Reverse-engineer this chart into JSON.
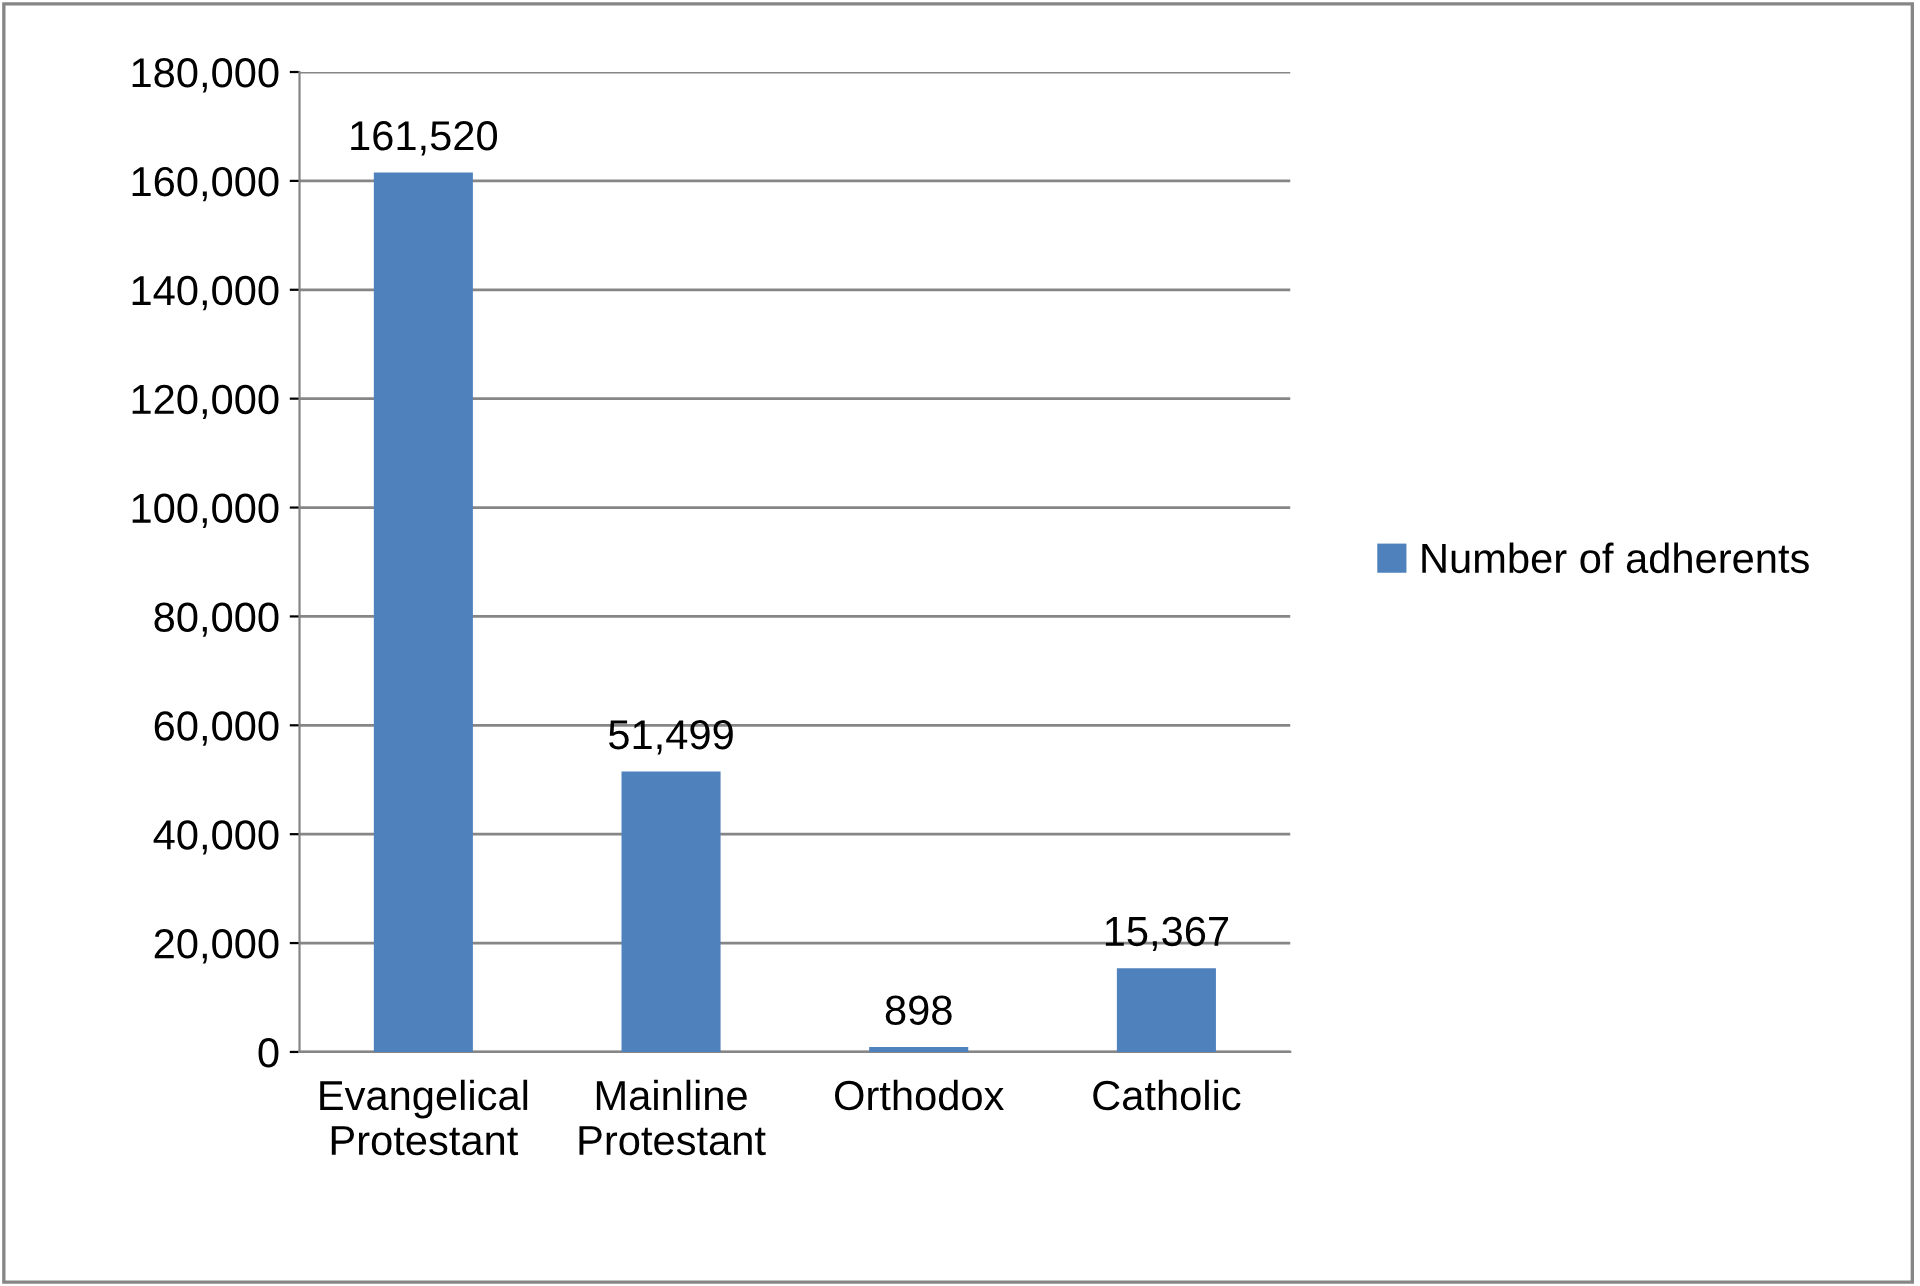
{
  "chart_data": {
    "type": "bar",
    "categories": [
      "Evangelical\nProtestant",
      "Mainline\nProtestant",
      "Orthodox",
      "Catholic"
    ],
    "series": [
      {
        "name": "Number of adherents",
        "color": "#4f81bd",
        "values": [
          161520,
          51499,
          898,
          15367
        ],
        "value_labels": [
          "161,520",
          "51,499",
          "898",
          "15,367"
        ]
      }
    ],
    "ylim": [
      0,
      180000
    ],
    "yticks": [
      0,
      {
        "value": 20000,
        "label": "20,000"
      },
      {
        "value": 40000,
        "label": "40,000"
      },
      {
        "value": 60000,
        "label": "60,000"
      },
      {
        "value": 80000,
        "label": "80,000"
      },
      {
        "value": 100000,
        "label": "100,000"
      },
      {
        "value": 120000,
        "label": "120,000"
      },
      {
        "value": 140000,
        "label": "140,000"
      },
      {
        "value": 160000,
        "label": "160,000"
      },
      {
        "value": 180000,
        "label": "180,000"
      }
    ],
    "grid": "y",
    "legend": "right"
  }
}
